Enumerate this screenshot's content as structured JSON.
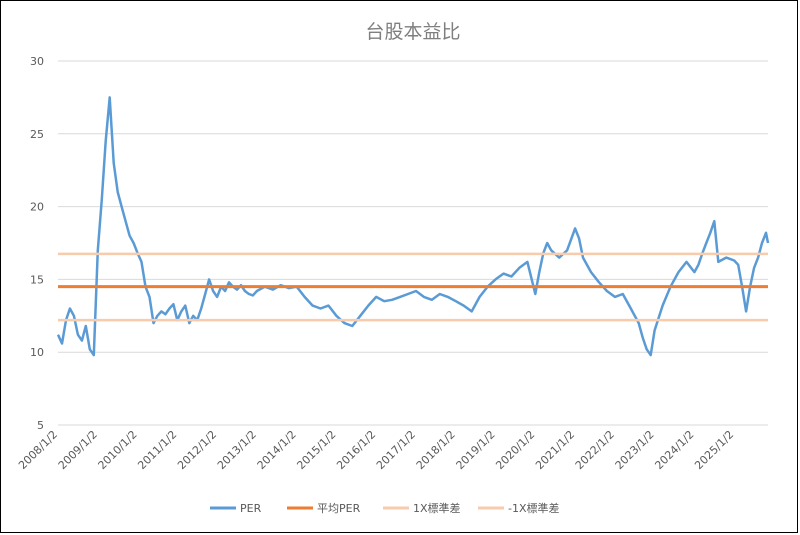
{
  "chart_data": {
    "type": "line",
    "title": "台股本益比",
    "xlabel": "",
    "ylabel": "",
    "ylim": [
      5,
      30
    ],
    "yticks": [
      5,
      10,
      15,
      20,
      25,
      30
    ],
    "xticks": [
      "2008/1/2",
      "2009/1/2",
      "2010/1/2",
      "2011/1/2",
      "2012/1/2",
      "2013/1/2",
      "2014/1/2",
      "2015/1/2",
      "2016/1/2",
      "2017/1/2",
      "2018/1/2",
      "2019/1/2",
      "2020/1/2",
      "2021/1/2",
      "2022/1/2",
      "2023/1/2",
      "2024/1/2",
      "2025/1/2"
    ],
    "xrange": [
      2008.0,
      2025.85
    ],
    "grid": true,
    "legend_position": "bottom",
    "series": [
      {
        "name": "PER",
        "color": "#5b9bd5",
        "x": [
          2008.0,
          2008.1,
          2008.2,
          2008.3,
          2008.4,
          2008.5,
          2008.6,
          2008.7,
          2008.8,
          2008.9,
          2009.0,
          2009.1,
          2009.2,
          2009.3,
          2009.4,
          2009.5,
          2009.6,
          2009.7,
          2009.8,
          2009.9,
          2010.0,
          2010.1,
          2010.2,
          2010.3,
          2010.4,
          2010.5,
          2010.6,
          2010.7,
          2010.8,
          2010.9,
          2011.0,
          2011.1,
          2011.2,
          2011.3,
          2011.4,
          2011.5,
          2011.6,
          2011.7,
          2011.8,
          2011.9,
          2012.0,
          2012.1,
          2012.2,
          2012.3,
          2012.4,
          2012.5,
          2012.6,
          2012.7,
          2012.8,
          2012.9,
          2013.0,
          2013.2,
          2013.4,
          2013.6,
          2013.8,
          2014.0,
          2014.2,
          2014.4,
          2014.6,
          2014.8,
          2015.0,
          2015.2,
          2015.4,
          2015.6,
          2015.8,
          2016.0,
          2016.2,
          2016.4,
          2016.6,
          2016.8,
          2017.0,
          2017.2,
          2017.4,
          2017.6,
          2017.8,
          2018.0,
          2018.2,
          2018.4,
          2018.6,
          2018.8,
          2019.0,
          2019.2,
          2019.4,
          2019.6,
          2019.8,
          2020.0,
          2020.1,
          2020.2,
          2020.3,
          2020.4,
          2020.6,
          2020.8,
          2021.0,
          2021.1,
          2021.2,
          2021.4,
          2021.6,
          2021.8,
          2022.0,
          2022.2,
          2022.4,
          2022.6,
          2022.7,
          2022.8,
          2022.9,
          2023.0,
          2023.2,
          2023.4,
          2023.6,
          2023.8,
          2024.0,
          2024.1,
          2024.2,
          2024.3,
          2024.4,
          2024.5,
          2024.6,
          2024.8,
          2025.0,
          2025.1,
          2025.2,
          2025.3,
          2025.4,
          2025.5,
          2025.6,
          2025.7,
          2025.8,
          2025.85
        ],
        "values": [
          11.2,
          10.6,
          12.2,
          13.0,
          12.5,
          11.2,
          10.8,
          11.8,
          10.2,
          9.8,
          17.0,
          20.5,
          24.5,
          27.5,
          23.0,
          21.0,
          20.0,
          19.0,
          18.0,
          17.5,
          16.8,
          16.2,
          14.5,
          13.8,
          12.0,
          12.5,
          12.8,
          12.6,
          13.0,
          13.3,
          12.2,
          12.8,
          13.2,
          12.0,
          12.5,
          12.2,
          13.0,
          14.0,
          15.0,
          14.2,
          13.8,
          14.5,
          14.2,
          14.8,
          14.5,
          14.3,
          14.6,
          14.2,
          14.0,
          13.9,
          14.2,
          14.5,
          14.3,
          14.6,
          14.4,
          14.5,
          13.8,
          13.2,
          13.0,
          13.2,
          12.5,
          12.0,
          11.8,
          12.5,
          13.2,
          13.8,
          13.5,
          13.6,
          13.8,
          14.0,
          14.2,
          13.8,
          13.6,
          14.0,
          13.8,
          13.5,
          13.2,
          12.8,
          13.8,
          14.5,
          15.0,
          15.4,
          15.2,
          15.8,
          16.2,
          14.0,
          15.5,
          16.8,
          17.5,
          17.0,
          16.5,
          17.0,
          18.5,
          17.8,
          16.5,
          15.5,
          14.8,
          14.2,
          13.8,
          14.0,
          13.0,
          12.0,
          11.0,
          10.2,
          9.8,
          11.5,
          13.2,
          14.5,
          15.5,
          16.2,
          15.5,
          16.0,
          16.8,
          17.5,
          18.2,
          19.0,
          16.2,
          16.5,
          16.3,
          16.0,
          14.5,
          12.8,
          14.5,
          15.8,
          16.5,
          17.5,
          18.2,
          17.5
        ]
      },
      {
        "name": "平均PER",
        "color": "#ed7d31",
        "constant": 14.5
      },
      {
        "name": "1X標準差",
        "color": "#f8cbad",
        "constant": 16.75
      },
      {
        "name": "-1X標準差",
        "color": "#f8cbad",
        "constant": 12.2
      }
    ]
  }
}
